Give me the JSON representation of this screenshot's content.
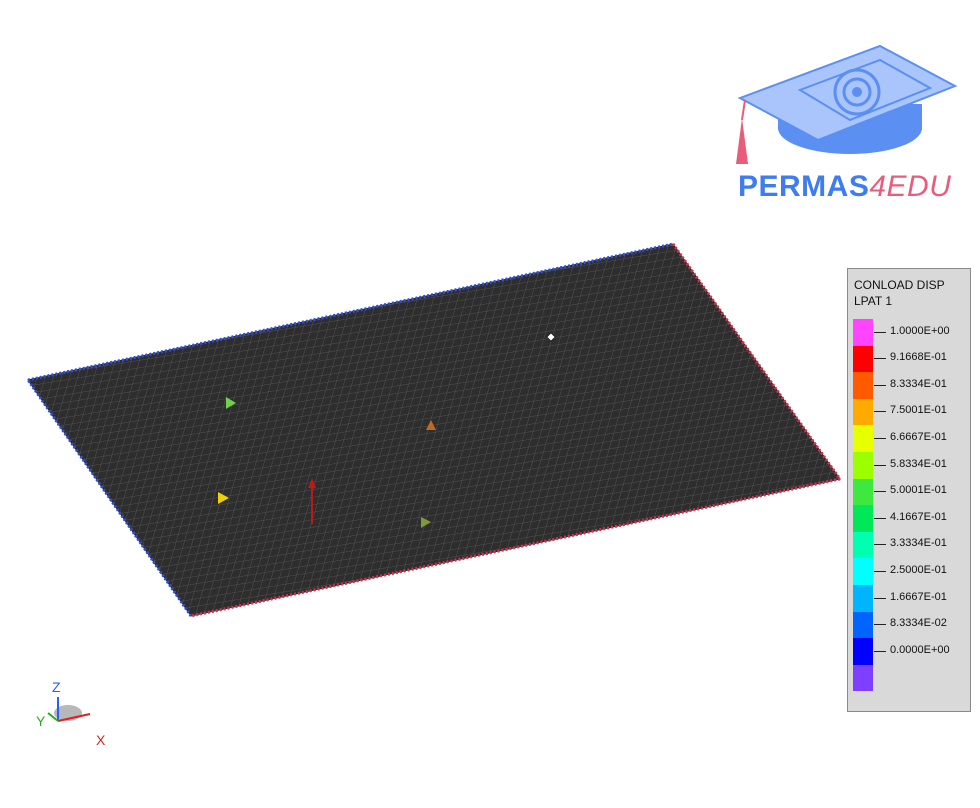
{
  "logo": {
    "brand": "PERMAS",
    "suffix": "4EDU",
    "colors": {
      "cap": "#5b8ff2",
      "cap_light": "#a9c5fb",
      "tassel": "#e85c7c"
    }
  },
  "legend": {
    "title_line1": "CONLOAD DISP",
    "title_line2": "LPAT 1",
    "colors": [
      "#ff44ff",
      "#ff0000",
      "#ff5a00",
      "#ffaa00",
      "#e8ff00",
      "#9bff00",
      "#3ee83e",
      "#00e85a",
      "#00ffb0",
      "#00ffff",
      "#00b4ff",
      "#0064ff",
      "#0000ff",
      "#7f3fff"
    ],
    "labels": [
      "1.0000E+00",
      "9.1668E-01",
      "8.3334E-01",
      "7.5001E-01",
      "6.6667E-01",
      "5.8334E-01",
      "5.0001E-01",
      "4.1667E-01",
      "3.3334E-01",
      "2.5000E-01",
      "1.6667E-01",
      "8.3334E-02",
      "0.0000E+00"
    ]
  },
  "axes": {
    "z": "Z",
    "y": "Y",
    "x": "X"
  },
  "model": {
    "mesh_color": "#3a3a3a",
    "markers": [
      {
        "name": "green-load-marker",
        "color": "#6fd24a"
      },
      {
        "name": "orange-load-marker",
        "color": "#c2691d"
      },
      {
        "name": "yellow-load-marker",
        "color": "#f0d000"
      },
      {
        "name": "olive-load-marker",
        "color": "#7f9a3a"
      },
      {
        "name": "white-node-marker",
        "color": "#ffffff"
      },
      {
        "name": "red-force-arrow",
        "color": "#c01818"
      }
    ]
  }
}
